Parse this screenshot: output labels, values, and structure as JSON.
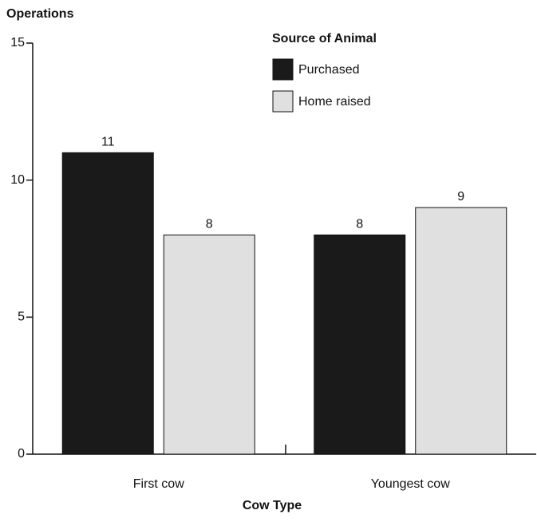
{
  "chart_data": {
    "type": "bar",
    "y_label": "Operations",
    "x_label": "Cow Type",
    "legend_title": "Source of Animal",
    "categories": [
      "First cow",
      "Youngest cow"
    ],
    "series": [
      {
        "name": "Purchased",
        "color": "#1a1a1a",
        "values": [
          11,
          8
        ]
      },
      {
        "name": "Home raised",
        "color": "#e0e0e0",
        "values": [
          8,
          9
        ]
      }
    ],
    "ylim": [
      0,
      15
    ],
    "yticks": [
      0,
      5,
      10,
      15
    ],
    "grid": false
  }
}
